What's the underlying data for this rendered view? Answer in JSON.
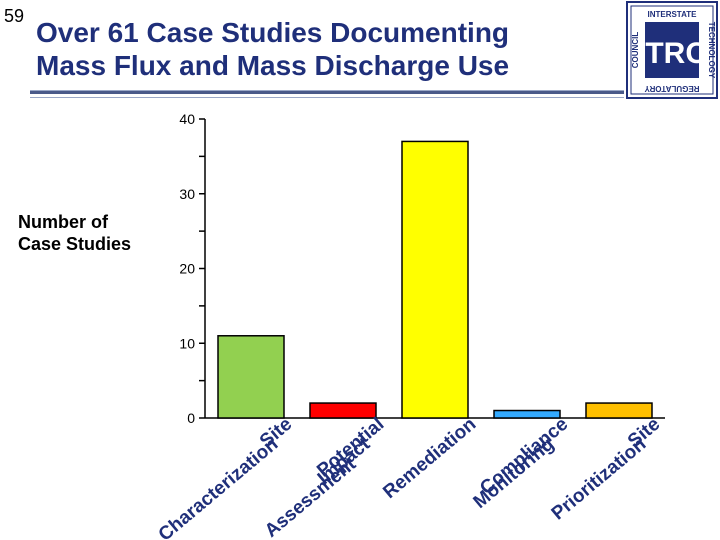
{
  "slide_number": "59",
  "title_lines": [
    "Over 61 Case Studies Documenting",
    "Mass Flux and Mass Discharge Use"
  ],
  "logo": {
    "text": "ITRC",
    "ring_words": [
      "INTERSTATE",
      "TECHNOLOGY",
      "REGULATORY",
      "COUNCIL"
    ],
    "colors": {
      "primary": "#1f2f7a",
      "background": "#ffffff"
    }
  },
  "colors": {
    "title": "#1f2f7a",
    "category_labels": "#1f2f7a"
  },
  "chart_data": {
    "type": "bar",
    "ylabel": [
      "Number of",
      "Case Studies"
    ],
    "xlabel": "",
    "ylim": [
      0,
      40
    ],
    "yticks": [
      0,
      10,
      20,
      30,
      40
    ],
    "grid": false,
    "legend": "none",
    "categories": [
      [
        "Site",
        "Characterization"
      ],
      [
        "Potential",
        "Impact",
        "Assessment"
      ],
      [
        "Remediation"
      ],
      [
        "Compliance",
        "Monitoring"
      ],
      [
        "Site",
        "Prioritization"
      ]
    ],
    "values": [
      11,
      2,
      37,
      1,
      2
    ],
    "bar_colors": [
      "#92d050",
      "#ff0000",
      "#ffff00",
      "#33aaff",
      "#ffc000"
    ]
  }
}
